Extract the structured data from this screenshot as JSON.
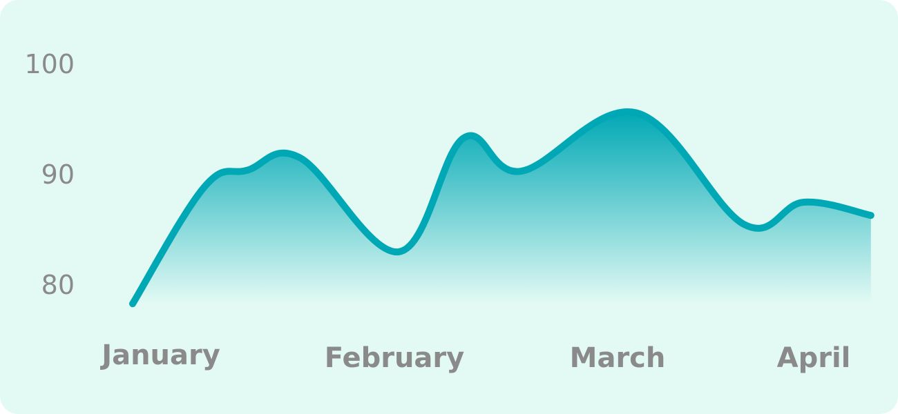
{
  "colors": {
    "background": "#e3faf4",
    "line": "#00a8b5",
    "fill_top": "#00a8b5",
    "fill_bottom": "#e3faf4",
    "tick_text": "#8a8a8a"
  },
  "chart_data": {
    "type": "area",
    "title": "",
    "xlabel": "",
    "ylabel": "",
    "x_ticks": [
      "January",
      "February",
      "March",
      "April"
    ],
    "y_ticks": [
      80,
      90,
      100
    ],
    "ylim": [
      80,
      100
    ],
    "grid": false,
    "legend": "none",
    "series": [
      {
        "points": [
          {
            "x": 0.0,
            "y": 78.3
          },
          {
            "x": 0.3,
            "y": 88.9
          },
          {
            "x": 0.48,
            "y": 90.4
          },
          {
            "x": 0.7,
            "y": 91.5
          },
          {
            "x": 1.11,
            "y": 83.0
          },
          {
            "x": 1.38,
            "y": 93.3
          },
          {
            "x": 1.62,
            "y": 90.3
          },
          {
            "x": 2.1,
            "y": 95.6
          },
          {
            "x": 2.55,
            "y": 85.5
          },
          {
            "x": 2.8,
            "y": 87.5
          },
          {
            "x": 3.08,
            "y": 86.3
          }
        ]
      }
    ]
  }
}
